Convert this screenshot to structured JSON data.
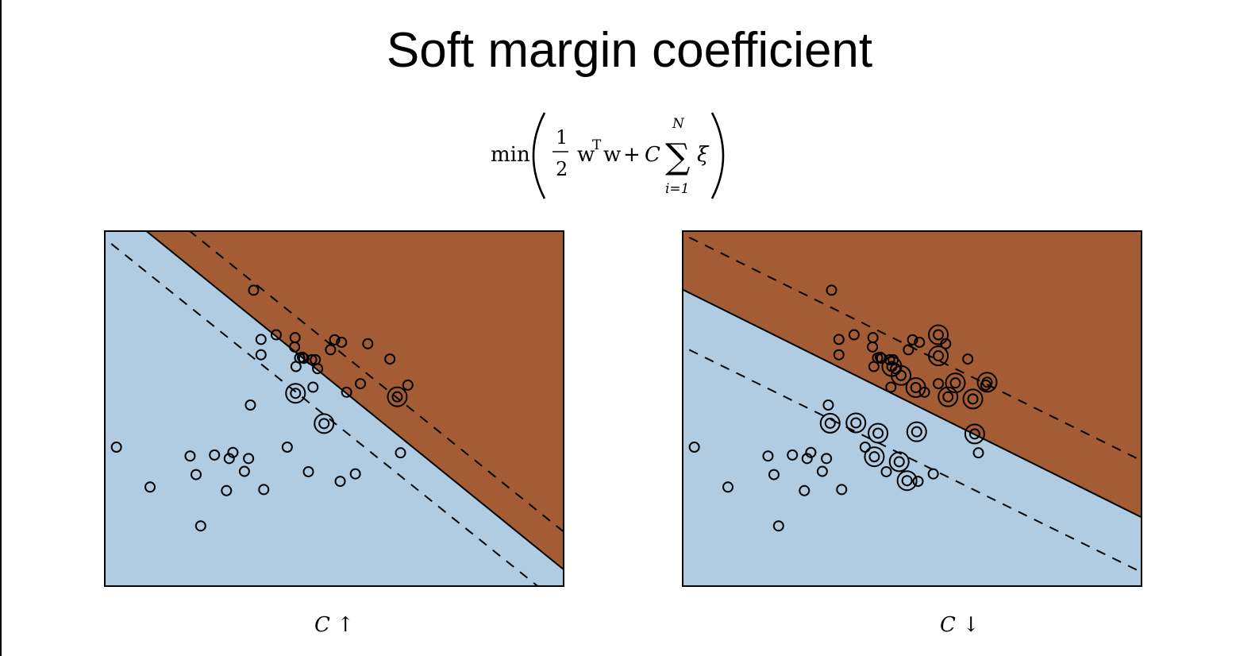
{
  "slide": {
    "title": "Soft margin coefficient"
  },
  "formula": {
    "min": "min",
    "half_num": "1",
    "half_den": "2",
    "w": "w",
    "transpose": "T",
    "plus": "+",
    "coef": "C",
    "sigma": "∑",
    "upper": "N",
    "lower": "i=1",
    "xi": "ξ"
  },
  "colors": {
    "class_a": "#a35c34",
    "class_b": "#afcce2",
    "ink": "#000000"
  },
  "panels": [
    {
      "caption_symbol": "C",
      "caption_arrow": "↑",
      "boundary": [
        [
          0.09,
          0
        ],
        [
          1.0,
          0.953
        ]
      ],
      "margin_upper": [
        [
          0.184,
          0
        ],
        [
          1.0,
          0.847
        ]
      ],
      "margin_lower": [
        [
          0.016,
          0.038
        ],
        [
          0.944,
          1.0
        ]
      ],
      "points": [
        [
          0.027,
          0.608
        ],
        [
          0.21,
          0.829
        ],
        [
          0.325,
          0.168
        ],
        [
          0.374,
          0.293
        ],
        [
          0.341,
          0.306
        ],
        [
          0.341,
          0.349
        ],
        [
          0.415,
          0.301
        ],
        [
          0.414,
          0.327
        ],
        [
          0.431,
          0.356
        ],
        [
          0.451,
          0.363
        ],
        [
          0.492,
          0.335
        ],
        [
          0.501,
          0.307
        ],
        [
          0.516,
          0.314
        ],
        [
          0.573,
          0.318
        ],
        [
          0.417,
          0.382
        ],
        [
          0.425,
          0.358
        ],
        [
          0.66,
          0.434
        ],
        [
          0.527,
          0.454
        ],
        [
          0.464,
          0.388
        ],
        [
          0.459,
          0.363
        ],
        [
          0.621,
          0.361
        ],
        [
          0.434,
          0.359
        ],
        [
          0.318,
          0.49
        ],
        [
          0.454,
          0.44
        ],
        [
          0.557,
          0.43
        ],
        [
          0.644,
          0.624
        ],
        [
          0.305,
          0.676
        ],
        [
          0.444,
          0.677
        ],
        [
          0.513,
          0.704
        ],
        [
          0.546,
          0.683
        ],
        [
          0.28,
          0.623
        ],
        [
          0.347,
          0.727
        ],
        [
          0.398,
          0.608
        ],
        [
          0.187,
          0.633
        ],
        [
          0.266,
          0.73
        ],
        [
          0.2,
          0.685
        ],
        [
          0.314,
          0.64
        ],
        [
          0.272,
          0.64
        ],
        [
          0.24,
          0.63
        ],
        [
          0.1,
          0.72
        ]
      ],
      "support_vectors": [
        [
          0.416,
          0.457
        ],
        [
          0.478,
          0.542
        ],
        [
          0.637,
          0.467
        ]
      ]
    },
    {
      "caption_symbol": "C",
      "caption_arrow": "↓",
      "boundary": [
        [
          0,
          0.165
        ],
        [
          1.0,
          0.806
        ]
      ],
      "margin_upper": [
        [
          0.016,
          0.02
        ],
        [
          1.0,
          0.647
        ]
      ],
      "margin_lower": [
        [
          0.016,
          0.335
        ],
        [
          1.0,
          0.96
        ]
      ],
      "points": [
        [
          0.027,
          0.608
        ],
        [
          0.21,
          0.829
        ],
        [
          0.325,
          0.168
        ],
        [
          0.374,
          0.293
        ],
        [
          0.341,
          0.306
        ],
        [
          0.341,
          0.349
        ],
        [
          0.415,
          0.301
        ],
        [
          0.414,
          0.327
        ],
        [
          0.431,
          0.356
        ],
        [
          0.451,
          0.363
        ],
        [
          0.492,
          0.335
        ],
        [
          0.501,
          0.307
        ],
        [
          0.516,
          0.314
        ],
        [
          0.573,
          0.318
        ],
        [
          0.417,
          0.382
        ],
        [
          0.425,
          0.358
        ],
        [
          0.66,
          0.434
        ],
        [
          0.527,
          0.454
        ],
        [
          0.464,
          0.388
        ],
        [
          0.459,
          0.363
        ],
        [
          0.621,
          0.361
        ],
        [
          0.434,
          0.359
        ],
        [
          0.318,
          0.49
        ],
        [
          0.454,
          0.44
        ],
        [
          0.557,
          0.43
        ],
        [
          0.644,
          0.624
        ],
        [
          0.305,
          0.676
        ],
        [
          0.444,
          0.677
        ],
        [
          0.513,
          0.704
        ],
        [
          0.546,
          0.683
        ],
        [
          0.28,
          0.623
        ],
        [
          0.347,
          0.727
        ],
        [
          0.398,
          0.608
        ],
        [
          0.187,
          0.633
        ],
        [
          0.266,
          0.73
        ],
        [
          0.2,
          0.685
        ],
        [
          0.314,
          0.64
        ],
        [
          0.272,
          0.64
        ],
        [
          0.24,
          0.63
        ],
        [
          0.1,
          0.72
        ]
      ],
      "support_vectors": [
        [
          0.557,
          0.293
        ],
        [
          0.557,
          0.352
        ],
        [
          0.456,
          0.382
        ],
        [
          0.476,
          0.407
        ],
        [
          0.508,
          0.441
        ],
        [
          0.594,
          0.428
        ],
        [
          0.636,
          0.571
        ],
        [
          0.426,
          0.569
        ],
        [
          0.322,
          0.541
        ],
        [
          0.472,
          0.649
        ],
        [
          0.51,
          0.565
        ],
        [
          0.378,
          0.54
        ],
        [
          0.418,
          0.635
        ],
        [
          0.489,
          0.702
        ],
        [
          0.663,
          0.426
        ],
        [
          0.578,
          0.467
        ],
        [
          0.632,
          0.473
        ]
      ]
    }
  ]
}
